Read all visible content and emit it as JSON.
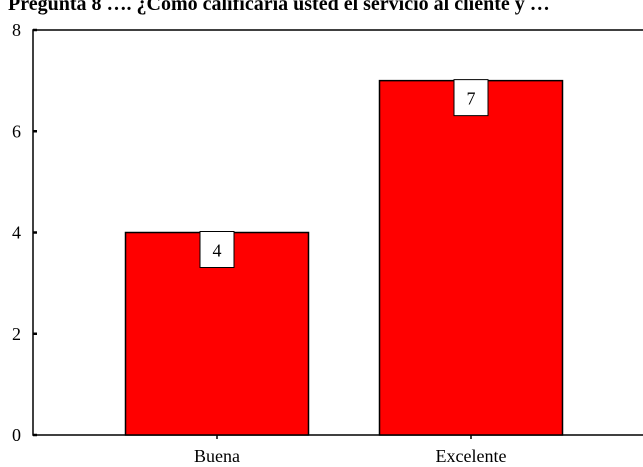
{
  "chart_data": {
    "type": "bar",
    "title": "Pregunta 8 …. ¿Cómo calificaría usted el servicio al cliente y …",
    "categories": [
      "Buena",
      "Excelente"
    ],
    "values": [
      4,
      7
    ],
    "data_labels": [
      "4",
      "7"
    ],
    "xlabel": "",
    "ylabel": "",
    "ylim": [
      0,
      8
    ],
    "yticks": [
      0,
      2,
      4,
      6,
      8
    ],
    "grid": false,
    "legend": "none",
    "bar_color": "#ff0000",
    "bar_edge_color": "#000000"
  }
}
